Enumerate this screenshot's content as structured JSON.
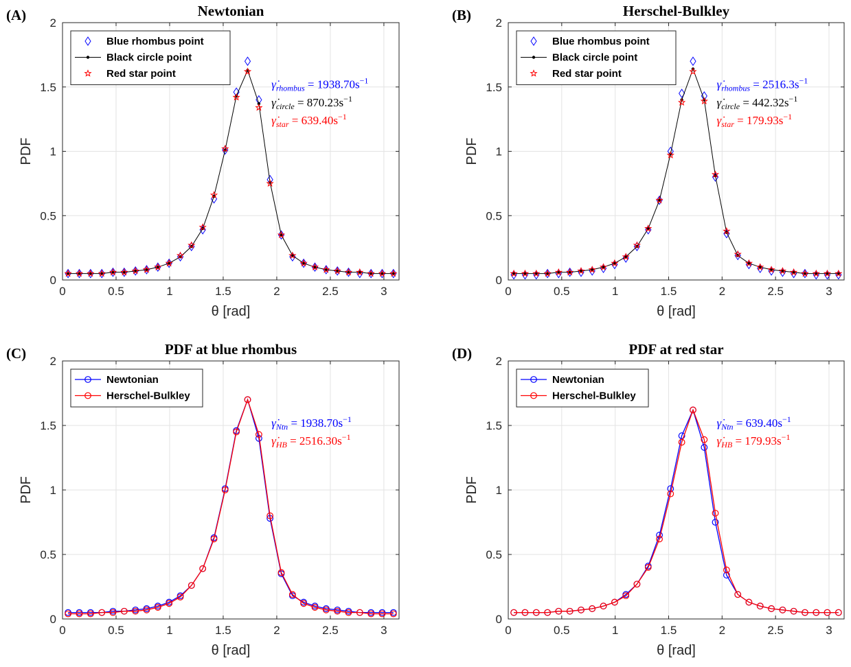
{
  "chart_data": [
    {
      "type": "line",
      "panel_label": "(A)",
      "title": "Newtonian",
      "xlabel": "θ [rad]",
      "ylabel": "PDF",
      "xlim": [
        0,
        3.14159
      ],
      "ylim": [
        0,
        2
      ],
      "xticks": [
        0,
        0.5,
        1,
        1.5,
        2,
        2.5,
        3
      ],
      "xtick_labels": [
        "0",
        "0.5",
        "1",
        "1.5",
        "2",
        "2.5",
        "3"
      ],
      "yticks": [
        0,
        0.5,
        1,
        1.5,
        2
      ],
      "ytick_labels": [
        "0",
        "0.5",
        "1",
        "1.5",
        "2"
      ],
      "grid": true,
      "legend_position": "top-left",
      "x": [
        0.052,
        0.157,
        0.262,
        0.367,
        0.471,
        0.576,
        0.681,
        0.785,
        0.89,
        0.995,
        1.1,
        1.204,
        1.309,
        1.414,
        1.518,
        1.623,
        1.728,
        1.833,
        1.937,
        2.042,
        2.147,
        2.251,
        2.356,
        2.461,
        2.566,
        2.67,
        2.775,
        2.88,
        2.984,
        3.089
      ],
      "series": [
        {
          "name": "Blue rhombus point",
          "color": "#0000ff",
          "marker": "diamond",
          "line": false,
          "values": [
            0.05,
            0.05,
            0.05,
            0.05,
            0.06,
            0.06,
            0.07,
            0.08,
            0.1,
            0.13,
            0.18,
            0.26,
            0.39,
            0.63,
            1.01,
            1.46,
            1.7,
            1.4,
            0.78,
            0.35,
            0.18,
            0.13,
            0.1,
            0.08,
            0.07,
            0.06,
            0.05,
            0.05,
            0.05,
            0.05
          ]
        },
        {
          "name": "Black circle point",
          "color": "#000000",
          "marker": "dot",
          "line": true,
          "values": [
            0.05,
            0.05,
            0.05,
            0.05,
            0.06,
            0.06,
            0.07,
            0.08,
            0.1,
            0.13,
            0.18,
            0.26,
            0.4,
            0.65,
            1.01,
            1.43,
            1.63,
            1.37,
            0.76,
            0.35,
            0.19,
            0.13,
            0.1,
            0.08,
            0.07,
            0.06,
            0.06,
            0.05,
            0.05,
            0.05
          ]
        },
        {
          "name": "Red star point",
          "color": "#ff0000",
          "marker": "star",
          "line": false,
          "values": [
            0.05,
            0.05,
            0.05,
            0.05,
            0.06,
            0.06,
            0.07,
            0.08,
            0.1,
            0.13,
            0.19,
            0.27,
            0.41,
            0.66,
            1.02,
            1.42,
            1.62,
            1.34,
            0.75,
            0.35,
            0.19,
            0.13,
            0.1,
            0.08,
            0.07,
            0.06,
            0.06,
            0.05,
            0.05,
            0.05
          ]
        }
      ],
      "annotations": [
        {
          "sym": "γ̇",
          "sub": "rhombus",
          "rest": " = 1938.70s",
          "sup": "−1",
          "color": "#0000ff",
          "x": 1.95,
          "y": 1.49
        },
        {
          "sym": "γ̇",
          "sub": "circle",
          "rest": " = 870.23s",
          "sup": "−1",
          "color": "#000000",
          "x": 1.95,
          "y": 1.35
        },
        {
          "sym": "γ̇",
          "sub": "star",
          "rest": " = 639.40s",
          "sup": "−1",
          "color": "#ff0000",
          "x": 1.95,
          "y": 1.21
        }
      ]
    },
    {
      "type": "line",
      "panel_label": "(B)",
      "title": "Herschel-Bulkley",
      "xlabel": "θ [rad]",
      "ylabel": "PDF",
      "xlim": [
        0,
        3.14159
      ],
      "ylim": [
        0,
        2
      ],
      "xticks": [
        0,
        0.5,
        1,
        1.5,
        2,
        2.5,
        3
      ],
      "xtick_labels": [
        "0",
        "0.5",
        "1",
        "1.5",
        "2",
        "2.5",
        "3"
      ],
      "yticks": [
        0,
        0.5,
        1,
        1.5,
        2
      ],
      "ytick_labels": [
        "0",
        "0.5",
        "1",
        "1.5",
        "2"
      ],
      "grid": true,
      "legend_position": "top-left",
      "x": [
        0.052,
        0.157,
        0.262,
        0.367,
        0.471,
        0.576,
        0.681,
        0.785,
        0.89,
        0.995,
        1.1,
        1.204,
        1.309,
        1.414,
        1.518,
        1.623,
        1.728,
        1.833,
        1.937,
        2.042,
        2.147,
        2.251,
        2.356,
        2.461,
        2.566,
        2.67,
        2.775,
        2.88,
        2.984,
        3.089
      ],
      "series": [
        {
          "name": "Blue rhombus point",
          "color": "#0000ff",
          "marker": "diamond",
          "line": false,
          "values": [
            0.04,
            0.04,
            0.04,
            0.05,
            0.05,
            0.06,
            0.06,
            0.07,
            0.09,
            0.12,
            0.17,
            0.26,
            0.39,
            0.62,
            1.0,
            1.45,
            1.7,
            1.43,
            0.8,
            0.36,
            0.19,
            0.12,
            0.09,
            0.07,
            0.06,
            0.05,
            0.05,
            0.04,
            0.04,
            0.04
          ]
        },
        {
          "name": "Black circle point",
          "color": "#000000",
          "marker": "dot",
          "line": true,
          "values": [
            0.05,
            0.05,
            0.05,
            0.05,
            0.06,
            0.06,
            0.07,
            0.08,
            0.1,
            0.13,
            0.18,
            0.26,
            0.4,
            0.62,
            0.98,
            1.4,
            1.64,
            1.4,
            0.81,
            0.37,
            0.19,
            0.13,
            0.1,
            0.08,
            0.07,
            0.06,
            0.05,
            0.05,
            0.05,
            0.05
          ]
        },
        {
          "name": "Red star point",
          "color": "#ff0000",
          "marker": "star",
          "line": false,
          "values": [
            0.05,
            0.05,
            0.05,
            0.05,
            0.06,
            0.06,
            0.07,
            0.08,
            0.1,
            0.13,
            0.18,
            0.27,
            0.4,
            0.62,
            0.97,
            1.38,
            1.62,
            1.39,
            0.82,
            0.38,
            0.2,
            0.13,
            0.1,
            0.08,
            0.07,
            0.06,
            0.05,
            0.05,
            0.05,
            0.05
          ]
        }
      ],
      "annotations": [
        {
          "sym": "γ̇",
          "sub": "rhombus",
          "rest": " = 2516.3s",
          "sup": "−1",
          "color": "#0000ff",
          "x": 1.95,
          "y": 1.49
        },
        {
          "sym": "γ̇",
          "sub": "circle",
          "rest": " = 442.32s",
          "sup": "−1",
          "color": "#000000",
          "x": 1.95,
          "y": 1.35
        },
        {
          "sym": "γ̇",
          "sub": "star",
          "rest": " = 179.93s",
          "sup": "−1",
          "color": "#ff0000",
          "x": 1.95,
          "y": 1.21
        }
      ]
    },
    {
      "type": "line",
      "panel_label": "(C)",
      "title": "PDF at blue rhombus",
      "xlabel": "θ [rad]",
      "ylabel": "PDF",
      "xlim": [
        0,
        3.14159
      ],
      "ylim": [
        0,
        2
      ],
      "xticks": [
        0,
        0.5,
        1,
        1.5,
        2,
        2.5,
        3
      ],
      "xtick_labels": [
        "0",
        "0.5",
        "1",
        "1.5",
        "2",
        "2.5",
        "3"
      ],
      "yticks": [
        0,
        0.5,
        1,
        1.5,
        2
      ],
      "ytick_labels": [
        "0",
        "0.5",
        "1",
        "1.5",
        "2"
      ],
      "grid": true,
      "legend_position": "top-left",
      "x": [
        0.052,
        0.157,
        0.262,
        0.367,
        0.471,
        0.576,
        0.681,
        0.785,
        0.89,
        0.995,
        1.1,
        1.204,
        1.309,
        1.414,
        1.518,
        1.623,
        1.728,
        1.833,
        1.937,
        2.042,
        2.147,
        2.251,
        2.356,
        2.461,
        2.566,
        2.67,
        2.775,
        2.88,
        2.984,
        3.089
      ],
      "series": [
        {
          "name": "Newtonian",
          "color": "#0000ff",
          "marker": "circle",
          "line": true,
          "values": [
            0.05,
            0.05,
            0.05,
            0.05,
            0.06,
            0.06,
            0.07,
            0.08,
            0.1,
            0.13,
            0.18,
            0.26,
            0.39,
            0.63,
            1.01,
            1.46,
            1.7,
            1.4,
            0.78,
            0.35,
            0.18,
            0.13,
            0.1,
            0.08,
            0.07,
            0.06,
            0.05,
            0.05,
            0.05,
            0.05
          ]
        },
        {
          "name": "Herschel-Bulkley",
          "color": "#ff0000",
          "marker": "circle",
          "line": true,
          "values": [
            0.04,
            0.04,
            0.04,
            0.05,
            0.05,
            0.06,
            0.06,
            0.07,
            0.09,
            0.12,
            0.17,
            0.26,
            0.39,
            0.62,
            1.0,
            1.45,
            1.7,
            1.43,
            0.8,
            0.36,
            0.19,
            0.12,
            0.09,
            0.07,
            0.06,
            0.05,
            0.05,
            0.04,
            0.04,
            0.04
          ]
        }
      ],
      "annotations": [
        {
          "sym": "γ̇",
          "sub": "Ntn",
          "rest": " = 1938.70s",
          "sup": "−1",
          "color": "#0000ff",
          "x": 1.95,
          "y": 1.49
        },
        {
          "sym": "γ̇",
          "sub": "HB",
          "rest": " = 2516.30s",
          "sup": "−1",
          "color": "#ff0000",
          "x": 1.95,
          "y": 1.35
        }
      ]
    },
    {
      "type": "line",
      "panel_label": "(D)",
      "title": "PDF at red star",
      "xlabel": "θ [rad]",
      "ylabel": "PDF",
      "xlim": [
        0,
        3.14159
      ],
      "ylim": [
        0,
        2
      ],
      "xticks": [
        0,
        0.5,
        1,
        1.5,
        2,
        2.5,
        3
      ],
      "xtick_labels": [
        "0",
        "0.5",
        "1",
        "1.5",
        "2",
        "2.5",
        "3"
      ],
      "yticks": [
        0,
        0.5,
        1,
        1.5,
        2
      ],
      "ytick_labels": [
        "0",
        "0.5",
        "1",
        "1.5",
        "2"
      ],
      "grid": true,
      "legend_position": "top-left",
      "x": [
        0.052,
        0.157,
        0.262,
        0.367,
        0.471,
        0.576,
        0.681,
        0.785,
        0.89,
        0.995,
        1.1,
        1.204,
        1.309,
        1.414,
        1.518,
        1.623,
        1.728,
        1.833,
        1.937,
        2.042,
        2.147,
        2.251,
        2.356,
        2.461,
        2.566,
        2.67,
        2.775,
        2.88,
        2.984,
        3.089
      ],
      "series": [
        {
          "name": "Newtonian",
          "color": "#0000ff",
          "marker": "circle",
          "line": true,
          "values": [
            0.05,
            0.05,
            0.05,
            0.05,
            0.06,
            0.06,
            0.07,
            0.08,
            0.1,
            0.13,
            0.19,
            0.27,
            0.41,
            0.65,
            1.01,
            1.42,
            1.62,
            1.33,
            0.75,
            0.34,
            0.19,
            0.13,
            0.1,
            0.08,
            0.07,
            0.06,
            0.05,
            0.05,
            0.05,
            0.05
          ]
        },
        {
          "name": "Herschel-Bulkley",
          "color": "#ff0000",
          "marker": "circle",
          "line": true,
          "values": [
            0.05,
            0.05,
            0.05,
            0.05,
            0.06,
            0.06,
            0.07,
            0.08,
            0.1,
            0.13,
            0.18,
            0.27,
            0.4,
            0.62,
            0.97,
            1.37,
            1.62,
            1.39,
            0.82,
            0.38,
            0.19,
            0.13,
            0.1,
            0.08,
            0.07,
            0.06,
            0.05,
            0.05,
            0.05,
            0.05
          ]
        }
      ],
      "annotations": [
        {
          "sym": "γ̇",
          "sub": "Ntn",
          "rest": " = 639.40s",
          "sup": "−1",
          "color": "#0000ff",
          "x": 1.95,
          "y": 1.49
        },
        {
          "sym": "γ̇",
          "sub": "HB",
          "rest": " = 179.93s",
          "sup": "−1",
          "color": "#ff0000",
          "x": 1.95,
          "y": 1.35
        }
      ]
    }
  ]
}
